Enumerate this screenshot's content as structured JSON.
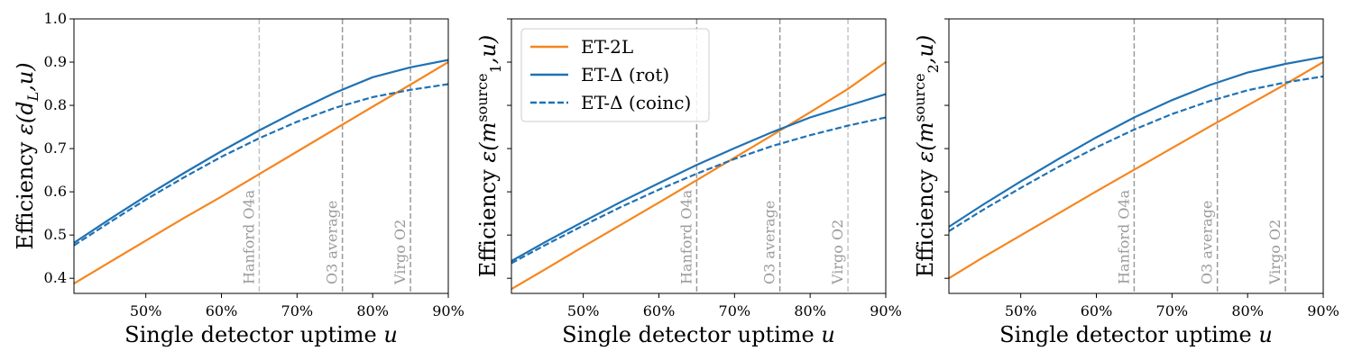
{
  "colors": {
    "et2l": "#f5861f",
    "et_delta": "#1f72b4",
    "vline": "#9a9a9a",
    "vline_light": "#c4c4c4"
  },
  "chart_data": [
    {
      "type": "line",
      "xlabel": "Single detector uptime u",
      "ylabel": "Efficiency ε(d_L,u)",
      "xlim": [
        40.5,
        90
      ],
      "ylim": [
        0.365,
        1.0
      ],
      "xticks": [
        "50%",
        "60%",
        "70%",
        "80%",
        "90%"
      ],
      "xtick_values": [
        50,
        60,
        70,
        80,
        90
      ],
      "yticks": [
        "0.4",
        "0.5",
        "0.6",
        "0.7",
        "0.8",
        "0.9",
        "1.0"
      ],
      "ytick_values": [
        0.4,
        0.5,
        0.6,
        0.7,
        0.8,
        0.9,
        1.0
      ],
      "show_ytick_labels": true,
      "x": [
        40.5,
        45,
        50,
        55,
        60,
        65,
        70,
        75,
        80,
        85,
        90
      ],
      "series": [
        {
          "name": "ET-2L",
          "style": "solid",
          "color": "#f5861f",
          "values": [
            0.388,
            0.435,
            0.487,
            0.539,
            0.589,
            0.641,
            0.693,
            0.745,
            0.797,
            0.848,
            0.9
          ]
        },
        {
          "name": "ET-Δ (rot)",
          "style": "solid",
          "color": "#1f72b4",
          "values": [
            0.482,
            0.534,
            0.59,
            0.643,
            0.694,
            0.742,
            0.787,
            0.829,
            0.865,
            0.888,
            0.905
          ]
        },
        {
          "name": "ET-Δ (coinc)",
          "style": "dashed",
          "color": "#1f72b4",
          "values": [
            0.476,
            0.527,
            0.582,
            0.633,
            0.681,
            0.724,
            0.762,
            0.794,
            0.819,
            0.836,
            0.849
          ]
        }
      ],
      "vlines": [
        {
          "x": 65,
          "label": "Hanford O4a",
          "light": true
        },
        {
          "x": 76,
          "label": "O3 average",
          "light": false
        },
        {
          "x": 85,
          "label": "Virgo O2",
          "light": false
        }
      ]
    },
    {
      "type": "line",
      "xlabel": "Single detector uptime u",
      "ylabel": "Efficiency ε(m_1^source,u)",
      "xlim": [
        40.5,
        90
      ],
      "ylim": [
        0.365,
        1.0
      ],
      "xticks": [
        "50%",
        "60%",
        "70%",
        "80%",
        "90%"
      ],
      "xtick_values": [
        50,
        60,
        70,
        80,
        90
      ],
      "yticks": [
        "0.4",
        "0.5",
        "0.6",
        "0.7",
        "0.8",
        "0.9",
        "1.0"
      ],
      "ytick_values": [
        0.4,
        0.5,
        0.6,
        0.7,
        0.8,
        0.9,
        1.0
      ],
      "show_ytick_labels": false,
      "x": [
        40.5,
        45,
        50,
        55,
        60,
        65,
        70,
        75,
        80,
        85,
        90
      ],
      "series": [
        {
          "name": "ET-2L",
          "style": "solid",
          "color": "#f5861f",
          "values": [
            0.375,
            0.421,
            0.473,
            0.524,
            0.575,
            0.627,
            0.679,
            0.731,
            0.784,
            0.838,
            0.9
          ]
        },
        {
          "name": "ET-Δ (rot)",
          "style": "solid",
          "color": "#1f72b4",
          "values": [
            0.44,
            0.484,
            0.531,
            0.577,
            0.62,
            0.662,
            0.701,
            0.738,
            0.772,
            0.799,
            0.826
          ]
        },
        {
          "name": "ET-Δ (coinc)",
          "style": "dashed",
          "color": "#1f72b4",
          "values": [
            0.435,
            0.477,
            0.522,
            0.565,
            0.605,
            0.642,
            0.676,
            0.706,
            0.731,
            0.753,
            0.772
          ]
        }
      ],
      "vlines": [
        {
          "x": 65,
          "label": "Hanford O4a",
          "light": false
        },
        {
          "x": 76,
          "label": "O3 average",
          "light": false
        },
        {
          "x": 85,
          "label": "Virgo O2",
          "light": true
        }
      ],
      "legend": {
        "position": "upper-left",
        "entries": [
          "ET-2L",
          "ET-Δ (rot)",
          "ET-Δ (coinc)"
        ]
      }
    },
    {
      "type": "line",
      "xlabel": "Single detector uptime u",
      "ylabel": "Efficiency ε(m_2^source,u)",
      "xlim": [
        40.5,
        90
      ],
      "ylim": [
        0.365,
        1.0
      ],
      "xticks": [
        "50%",
        "60%",
        "70%",
        "80%",
        "90%"
      ],
      "xtick_values": [
        50,
        60,
        70,
        80,
        90
      ],
      "yticks": [
        "0.4",
        "0.5",
        "0.6",
        "0.7",
        "0.8",
        "0.9",
        "1.0"
      ],
      "ytick_values": [
        0.4,
        0.5,
        0.6,
        0.7,
        0.8,
        0.9,
        1.0
      ],
      "show_ytick_labels": false,
      "x": [
        40.5,
        45,
        50,
        55,
        60,
        65,
        70,
        75,
        80,
        85,
        90
      ],
      "series": [
        {
          "name": "ET-2L",
          "style": "solid",
          "color": "#f5861f",
          "values": [
            0.4,
            0.448,
            0.499,
            0.55,
            0.601,
            0.651,
            0.701,
            0.751,
            0.8,
            0.849,
            0.9
          ]
        },
        {
          "name": "ET-Δ (rot)",
          "style": "solid",
          "color": "#1f72b4",
          "values": [
            0.519,
            0.57,
            0.624,
            0.676,
            0.726,
            0.772,
            0.812,
            0.847,
            0.876,
            0.896,
            0.912
          ]
        },
        {
          "name": "ET-Δ (coinc)",
          "style": "dashed",
          "color": "#1f72b4",
          "values": [
            0.509,
            0.558,
            0.609,
            0.658,
            0.703,
            0.744,
            0.78,
            0.81,
            0.835,
            0.853,
            0.867
          ]
        }
      ],
      "vlines": [
        {
          "x": 65,
          "label": "Hanford O4a",
          "light": false
        },
        {
          "x": 76,
          "label": "O3 average",
          "light": false
        },
        {
          "x": 85,
          "label": "Virgo O2",
          "light": false
        }
      ]
    }
  ]
}
